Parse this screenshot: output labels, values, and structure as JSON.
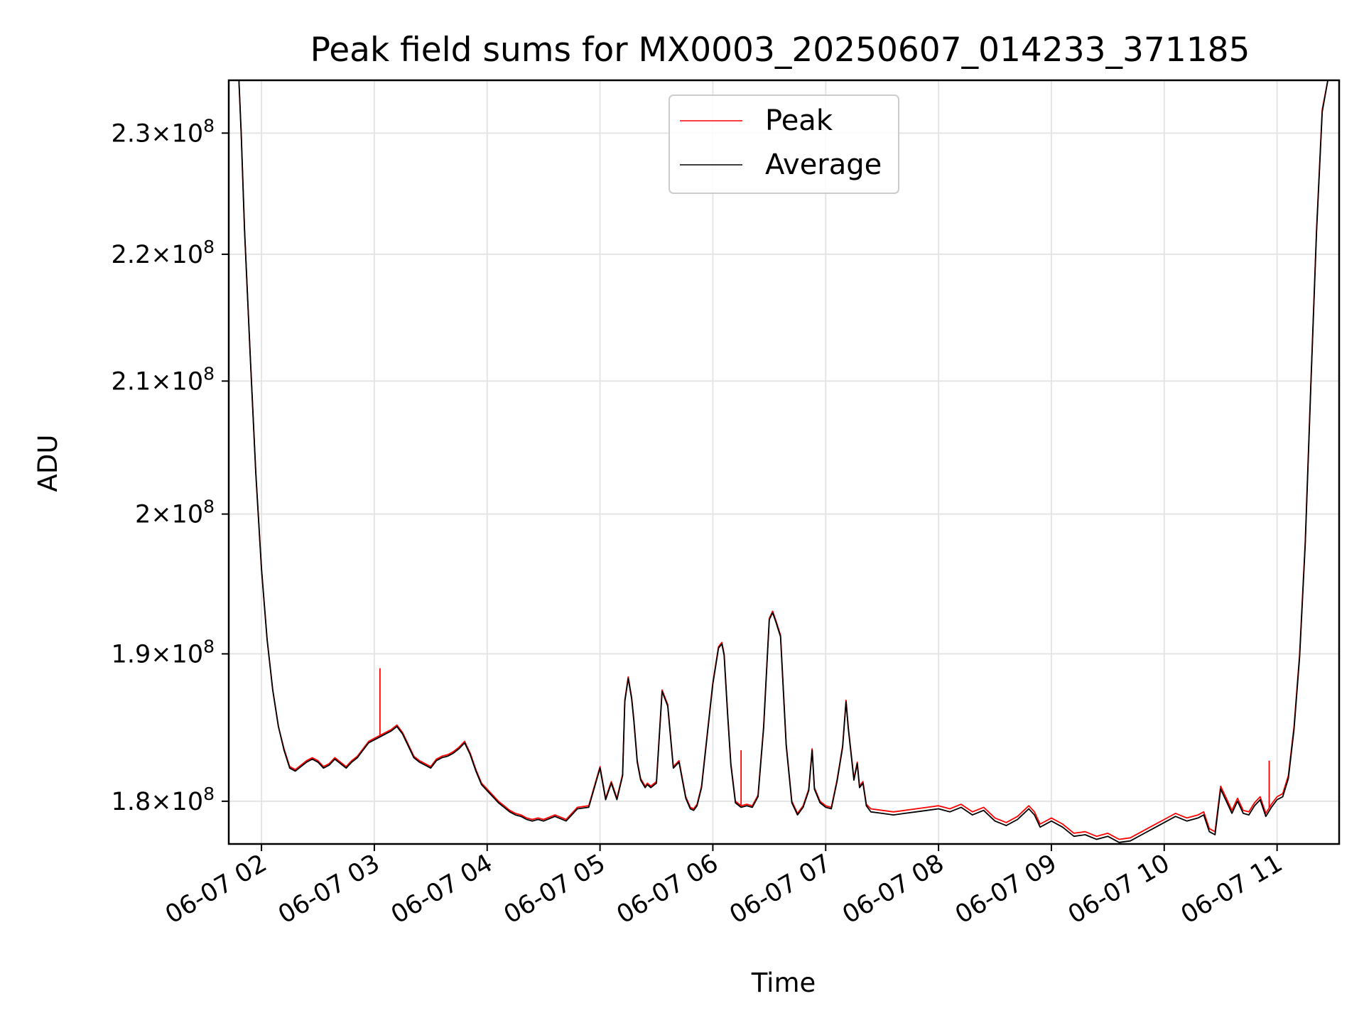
{
  "chart_data": {
    "type": "line",
    "title": "Peak field sums for MX0003_20250607_014233_371185",
    "xlabel": "Time",
    "ylabel": "ADU",
    "x_unit": "hours since 2025-06-07 00:00",
    "xlim": [
      1.71,
      11.55
    ],
    "ylim": [
      177200000,
      234500000
    ],
    "x_ticks": [
      {
        "value": 2,
        "label": "06-07 02"
      },
      {
        "value": 3,
        "label": "06-07 03"
      },
      {
        "value": 4,
        "label": "06-07 04"
      },
      {
        "value": 5,
        "label": "06-07 05"
      },
      {
        "value": 6,
        "label": "06-07 06"
      },
      {
        "value": 7,
        "label": "06-07 07"
      },
      {
        "value": 8,
        "label": "06-07 08"
      },
      {
        "value": 9,
        "label": "06-07 09"
      },
      {
        "value": 10,
        "label": "06-07 10"
      },
      {
        "value": 11,
        "label": "06-07 11"
      }
    ],
    "y_ticks": [
      {
        "value": 180000000,
        "mantissa": "1.8",
        "exp": "8"
      },
      {
        "value": 190000000,
        "mantissa": "1.9",
        "exp": "8"
      },
      {
        "value": 200000000,
        "mantissa": "2",
        "exp": "8"
      },
      {
        "value": 210000000,
        "mantissa": "2.1",
        "exp": "8"
      },
      {
        "value": 220000000,
        "mantissa": "2.2",
        "exp": "8"
      },
      {
        "value": 230000000,
        "mantissa": "2.3",
        "exp": "8"
      }
    ],
    "grid": true,
    "legend_position": "top-center",
    "series": [
      {
        "name": "Peak",
        "color": "#ff0000",
        "spikes": [
          [
            3.05,
            189000000
          ],
          [
            6.25,
            183400000
          ],
          [
            10.93,
            182700000
          ]
        ],
        "x": [
          1.71,
          1.8,
          1.82,
          1.85,
          1.9,
          1.95,
          2.0,
          2.05,
          2.1,
          2.15,
          2.2,
          2.25,
          2.3,
          2.35,
          2.4,
          2.45,
          2.5,
          2.55,
          2.6,
          2.65,
          2.7,
          2.75,
          2.8,
          2.85,
          2.9,
          2.95,
          3.0,
          3.05,
          3.1,
          3.15,
          3.2,
          3.25,
          3.3,
          3.35,
          3.4,
          3.45,
          3.5,
          3.55,
          3.6,
          3.65,
          3.7,
          3.75,
          3.8,
          3.85,
          3.9,
          3.95,
          4.0,
          4.05,
          4.1,
          4.15,
          4.2,
          4.25,
          4.3,
          4.35,
          4.4,
          4.45,
          4.5,
          4.6,
          4.7,
          4.8,
          4.9,
          5.0,
          5.05,
          5.1,
          5.15,
          5.2,
          5.22,
          5.25,
          5.28,
          5.3,
          5.33,
          5.36,
          5.4,
          5.42,
          5.45,
          5.5,
          5.55,
          5.6,
          5.65,
          5.7,
          5.73,
          5.76,
          5.8,
          5.83,
          5.86,
          5.9,
          5.95,
          6.0,
          6.05,
          6.08,
          6.1,
          6.13,
          6.16,
          6.2,
          6.25,
          6.3,
          6.35,
          6.4,
          6.45,
          6.48,
          6.5,
          6.53,
          6.56,
          6.6,
          6.65,
          6.7,
          6.75,
          6.8,
          6.85,
          6.88,
          6.9,
          6.95,
          7.0,
          7.05,
          7.1,
          7.15,
          7.18,
          7.2,
          7.25,
          7.28,
          7.3,
          7.33,
          7.36,
          7.4,
          7.5,
          7.6,
          7.7,
          7.8,
          7.9,
          8.0,
          8.1,
          8.2,
          8.3,
          8.4,
          8.5,
          8.6,
          8.7,
          8.8,
          8.85,
          8.9,
          9.0,
          9.1,
          9.2,
          9.3,
          9.4,
          9.5,
          9.6,
          9.7,
          9.8,
          9.9,
          10.0,
          10.1,
          10.2,
          10.3,
          10.35,
          10.4,
          10.45,
          10.5,
          10.55,
          10.6,
          10.65,
          10.7,
          10.75,
          10.8,
          10.85,
          10.9,
          10.95,
          11.0,
          11.05,
          11.1,
          11.15,
          11.2,
          11.25,
          11.3,
          11.35,
          11.4,
          11.45,
          11.55
        ],
        "y": [
          234500000,
          234500000,
          230000000,
          222000000,
          212000000,
          203000000,
          196000000,
          191000000,
          187500000,
          185000000,
          183500000,
          182300000,
          182100000,
          182400000,
          182700000,
          182900000,
          182700000,
          182300000,
          182500000,
          182900000,
          182600000,
          182300000,
          182700000,
          183000000,
          183500000,
          184000000,
          184200000,
          184400000,
          184600000,
          184800000,
          185100000,
          184600000,
          183800000,
          183000000,
          182700000,
          182500000,
          182300000,
          182800000,
          183000000,
          183100000,
          183300000,
          183600000,
          184000000,
          183200000,
          182100000,
          181200000,
          180800000,
          180400000,
          180000000,
          179700000,
          179400000,
          179200000,
          179100000,
          178900000,
          178800000,
          178900000,
          178800000,
          179100000,
          178800000,
          179600000,
          179700000,
          182300000,
          180200000,
          181300000,
          180200000,
          181800000,
          186800000,
          188400000,
          187000000,
          185500000,
          182700000,
          181500000,
          181000000,
          181200000,
          181000000,
          181300000,
          187500000,
          186500000,
          182300000,
          182700000,
          181500000,
          180300000,
          179600000,
          179500000,
          179800000,
          181000000,
          184500000,
          188000000,
          190500000,
          190800000,
          190000000,
          186000000,
          182500000,
          180000000,
          179700000,
          179800000,
          179700000,
          180400000,
          185000000,
          189500000,
          192500000,
          193000000,
          192300000,
          191300000,
          183800000,
          180000000,
          179200000,
          179700000,
          180800000,
          183500000,
          180900000,
          180000000,
          179700000,
          179600000,
          181400000,
          183700000,
          186800000,
          185000000,
          181500000,
          182600000,
          181000000,
          181300000,
          179800000,
          179500000,
          179400000,
          179300000,
          179400000,
          179500000,
          179600000,
          179700000,
          179500000,
          179800000,
          179300000,
          179600000,
          178900000,
          178600000,
          179000000,
          179700000,
          179300000,
          178500000,
          178900000,
          178500000,
          177900000,
          178000000,
          177700000,
          177900000,
          177500000,
          177600000,
          178000000,
          178400000,
          178800000,
          179200000,
          178900000,
          179100000,
          179300000,
          178200000,
          178000000,
          181000000,
          180200000,
          179400000,
          180200000,
          179400000,
          179300000,
          179900000,
          180300000,
          179200000,
          179800000,
          180300000,
          180500000,
          181700000,
          185000000,
          190000000,
          198000000,
          210000000,
          222000000,
          232000000,
          234500000,
          234500000
        ]
      },
      {
        "name": "Average",
        "color": "#000000",
        "x": [
          1.71,
          1.8,
          1.82,
          1.85,
          1.9,
          1.95,
          2.0,
          2.05,
          2.1,
          2.15,
          2.2,
          2.25,
          2.3,
          2.35,
          2.4,
          2.45,
          2.5,
          2.55,
          2.6,
          2.65,
          2.7,
          2.75,
          2.8,
          2.85,
          2.9,
          2.95,
          3.0,
          3.05,
          3.1,
          3.15,
          3.2,
          3.25,
          3.3,
          3.35,
          3.4,
          3.45,
          3.5,
          3.55,
          3.6,
          3.65,
          3.7,
          3.75,
          3.8,
          3.85,
          3.9,
          3.95,
          4.0,
          4.05,
          4.1,
          4.15,
          4.2,
          4.25,
          4.3,
          4.35,
          4.4,
          4.45,
          4.5,
          4.6,
          4.7,
          4.8,
          4.9,
          5.0,
          5.05,
          5.1,
          5.15,
          5.2,
          5.22,
          5.25,
          5.28,
          5.3,
          5.33,
          5.36,
          5.4,
          5.42,
          5.45,
          5.5,
          5.55,
          5.6,
          5.65,
          5.7,
          5.73,
          5.76,
          5.8,
          5.83,
          5.86,
          5.9,
          5.95,
          6.0,
          6.05,
          6.08,
          6.1,
          6.13,
          6.16,
          6.2,
          6.25,
          6.3,
          6.35,
          6.4,
          6.45,
          6.48,
          6.5,
          6.53,
          6.56,
          6.6,
          6.65,
          6.7,
          6.75,
          6.8,
          6.85,
          6.88,
          6.9,
          6.95,
          7.0,
          7.05,
          7.1,
          7.15,
          7.18,
          7.2,
          7.25,
          7.28,
          7.3,
          7.33,
          7.36,
          7.4,
          7.5,
          7.6,
          7.7,
          7.8,
          7.9,
          8.0,
          8.1,
          8.2,
          8.3,
          8.4,
          8.5,
          8.6,
          8.7,
          8.8,
          8.85,
          8.9,
          9.0,
          9.1,
          9.2,
          9.3,
          9.4,
          9.5,
          9.6,
          9.7,
          9.8,
          9.9,
          10.0,
          10.1,
          10.2,
          10.3,
          10.35,
          10.4,
          10.45,
          10.5,
          10.55,
          10.6,
          10.65,
          10.7,
          10.75,
          10.8,
          10.85,
          10.9,
          10.95,
          11.0,
          11.05,
          11.1,
          11.15,
          11.2,
          11.25,
          11.3,
          11.35,
          11.4,
          11.45,
          11.55
        ],
        "y": [
          234500000,
          234500000,
          230000000,
          222000000,
          212000000,
          203000000,
          196000000,
          191000000,
          187500000,
          185000000,
          183400000,
          182200000,
          182000000,
          182300000,
          182600000,
          182800000,
          182600000,
          182200000,
          182400000,
          182800000,
          182500000,
          182200000,
          182600000,
          182900000,
          183400000,
          183900000,
          184100000,
          184300000,
          184500000,
          184700000,
          185000000,
          184500000,
          183700000,
          182900000,
          182600000,
          182400000,
          182200000,
          182700000,
          182900000,
          183000000,
          183200000,
          183500000,
          183900000,
          183100000,
          182000000,
          181100000,
          180700000,
          180300000,
          179900000,
          179600000,
          179300000,
          179100000,
          179000000,
          178800000,
          178700000,
          178800000,
          178700000,
          179000000,
          178700000,
          179500000,
          179600000,
          182200000,
          180100000,
          181200000,
          180100000,
          181700000,
          186700000,
          188300000,
          186900000,
          185400000,
          182600000,
          181400000,
          180900000,
          181100000,
          180900000,
          181200000,
          187400000,
          186400000,
          182200000,
          182600000,
          181400000,
          180200000,
          179500000,
          179400000,
          179700000,
          180900000,
          184400000,
          187900000,
          190400000,
          190700000,
          189900000,
          185900000,
          182400000,
          179900000,
          179600000,
          179700000,
          179600000,
          180300000,
          184900000,
          189400000,
          192400000,
          192900000,
          192200000,
          191200000,
          183700000,
          179900000,
          179100000,
          179600000,
          180700000,
          183400000,
          180800000,
          179900000,
          179600000,
          179500000,
          181300000,
          183600000,
          186700000,
          184900000,
          181400000,
          182500000,
          180900000,
          181200000,
          179700000,
          179300000,
          179200000,
          179100000,
          179200000,
          179300000,
          179400000,
          179500000,
          179300000,
          179600000,
          179100000,
          179400000,
          178700000,
          178400000,
          178800000,
          179500000,
          179100000,
          178300000,
          178700000,
          178300000,
          177700000,
          177800000,
          177500000,
          177700000,
          177300000,
          177400000,
          177800000,
          178200000,
          178600000,
          179000000,
          178700000,
          178900000,
          179100000,
          178000000,
          177800000,
          180800000,
          180000000,
          179200000,
          180000000,
          179200000,
          179100000,
          179700000,
          180100000,
          179000000,
          179600000,
          180100000,
          180300000,
          181500000,
          184800000,
          189800000,
          197800000,
          209800000,
          221800000,
          231800000,
          234500000,
          234500000
        ]
      }
    ]
  }
}
